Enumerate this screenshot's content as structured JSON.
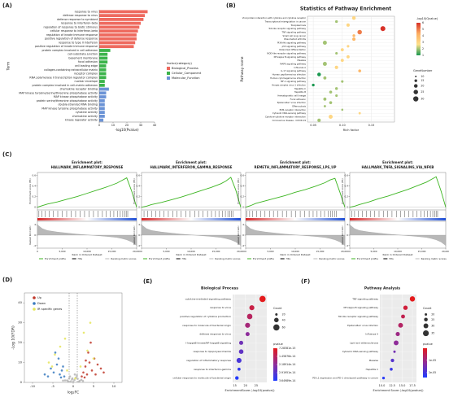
{
  "panel_labels": [
    "(A)",
    "(B)",
    "(C)",
    "(D)",
    "(E)",
    "(F)"
  ],
  "chart_data": [
    {
      "type": "hbar",
      "x_label": "-log10(Pvalue)",
      "y_label": "Term",
      "legend_title": "factor(category)",
      "xlim": [
        0,
        40
      ],
      "xticks": [
        0,
        10,
        20,
        30,
        40
      ],
      "series": [
        {
          "name": "Biological_Process",
          "color": "#ee6a5f",
          "categories": [
            "response to virus",
            "defense response to virus",
            "defense response to symbiont",
            "response to interferon-beta",
            "regulation of response to biotic stimulus",
            "cellular response to interferon-beta",
            "regulation of innate immune response",
            "positive regulation of defense response",
            "response to type II interferon",
            "positive regulation of innate immune response"
          ],
          "values": [
            35,
            33,
            32,
            30,
            29,
            28,
            27,
            27,
            26,
            25
          ]
        },
        {
          "name": "Cellular_Component",
          "color": "#3cb44b",
          "categories": [
            "protein complex involved in cell adhesion",
            "cell-substrate junction",
            "basement membrane",
            "focal adhesion",
            "cell leading edge",
            "collagen-containing extracellular matrix",
            "receptor complex",
            "RNA polymerase II transcription regulator complex",
            "nuclear envelope",
            "protein complex involved in cell-matrix adhesion"
          ],
          "values": [
            8,
            6,
            6,
            6,
            5,
            5,
            5,
            5,
            4,
            4
          ]
        },
        {
          "name": "Molecular_Function",
          "color": "#6b93d6",
          "categories": [
            "chemokine receptor binding",
            "MAP kinase tyrosine/serine/threonine phosphatase activity",
            "MAP kinase phosphatase activity",
            "protein serine/threonine phosphatase activity",
            "double-stranded RNA binding",
            "MAP kinase tyrosine phosphatase activity",
            "cytokine activity",
            "chemokine activity",
            "kinase regulator activity"
          ],
          "values": [
            7,
            5,
            5,
            4,
            4,
            4,
            4,
            4,
            3
          ]
        }
      ]
    },
    {
      "type": "dot",
      "title": "Statistics of Pathway Enrichment",
      "y_label": "Pathway name",
      "x_label": "Rich factor",
      "categories": [
        "Viral protein interaction with cytokine and cytokine receptor",
        "Transcriptional misregulation in cancer",
        "Toxoplasmosis",
        "Toll-like receptor signaling pathway",
        "TNF signaling pathway",
        "Small cell lung cancer",
        "Rheumatoid arthritis",
        "PI3K-Akt signaling pathway",
        "p53 signaling pathway",
        "Osteoclast differentiation",
        "NOD-like receptor signaling pathway",
        "NF-kappa B signaling pathway",
        "Measles",
        "MAPK signaling pathway",
        "Influenza A",
        "IL-17 signaling pathway",
        "Human papillomavirus infection",
        "Human cytomegalovirus infection",
        "HIF-1 signaling pathway",
        "Herpes simplex virus 1 infection",
        "Hepatitis C",
        "Hepatitis B",
        "Hematopoietic cell lineage",
        "Focal adhesion",
        "Epstein-Barr virus infection",
        "Efferocytosis",
        "ECM-receptor interaction",
        "Cytosolic DNA-sensing pathway",
        "Cytokine-cytokine receptor interaction",
        "Coronavirus disease - COVID-19"
      ],
      "values": [
        0.12,
        0.09,
        0.11,
        0.17,
        0.13,
        0.12,
        0.12,
        0.07,
        0.11,
        0.1,
        0.09,
        0.11,
        0.1,
        0.07,
        0.09,
        0.13,
        0.06,
        0.07,
        0.1,
        0.05,
        0.09,
        0.08,
        0.09,
        0.07,
        0.08,
        0.07,
        0.1,
        0.13,
        0.08,
        0.06
      ],
      "color_values": [
        3,
        2,
        3,
        6,
        5,
        4,
        4,
        2,
        3,
        3,
        2,
        3,
        3,
        2,
        3,
        4,
        1,
        2,
        2,
        1,
        2,
        2,
        2,
        2,
        2,
        2,
        2,
        3,
        3,
        2
      ],
      "sizes": [
        20,
        15,
        18,
        28,
        25,
        15,
        18,
        22,
        14,
        17,
        14,
        17,
        17,
        22,
        18,
        16,
        20,
        17,
        14,
        15,
        15,
        16,
        14,
        17,
        16,
        13,
        12,
        13,
        22,
        18
      ],
      "xlim": [
        0.04,
        0.19
      ],
      "xticks": [
        0.05,
        {
          "value": 0.1,
          "label": "0.10"
        },
        0.15
      ],
      "color_label": "-log10(Qvalue)",
      "colors": [
        "#1a9850",
        "#fee08b",
        "#fdae61",
        "#d73027"
      ],
      "clim": [
        1,
        6
      ],
      "cticks": [
        1,
        2,
        3,
        4,
        5,
        6
      ],
      "size_label": "GeneNumber",
      "size_ticks": [
        10,
        15,
        20,
        25,
        30
      ]
    },
    {
      "type": "gsea",
      "title": [
        "Enrichment plot:",
        "HALLMARK_INFLAMMATORY_RESPONSE"
      ],
      "x": [
        0,
        1000,
        2000,
        4000,
        6000,
        8000,
        10000,
        12000,
        14000,
        16000,
        17000,
        18000,
        19000,
        20000
      ],
      "values": [
        0,
        0.03,
        0.06,
        0.1,
        0.15,
        0.2,
        0.26,
        0.32,
        0.38,
        0.45,
        0.5,
        0.55,
        0.3,
        0
      ],
      "metric": [
        4,
        2.5,
        1.8,
        1.2,
        0.8,
        0.4,
        0.1,
        -0.2,
        -0.5,
        -0.9,
        -1.3,
        -1.8,
        -2.6,
        -4
      ],
      "hits": [
        300,
        900,
        1600,
        2400,
        3200,
        4100,
        5000,
        5900,
        6800,
        7700,
        8600,
        9500,
        10400,
        11300,
        12200,
        13100,
        13900,
        14700,
        15400,
        16100,
        16700,
        17200,
        17600,
        17900,
        18200
      ],
      "xlim": [
        0,
        20000
      ],
      "xticks": [
        0,
        {
          "value": 5000,
          "label": "5,000"
        },
        {
          "value": 10000,
          "label": "10,000"
        },
        {
          "value": 15000,
          "label": "15,000"
        },
        {
          "value": 20000,
          "label": "20,000"
        }
      ],
      "ylim": [
        -0.05,
        0.65
      ],
      "yticks": [
        0,
        0.2,
        0.4,
        0.6
      ],
      "y2lim": [
        -5,
        5
      ],
      "y2ticks": [
        -4,
        0,
        4
      ],
      "y_label": "Enrichment score (ES)",
      "y2_label": "Ranked list metric",
      "x_label": "Rank in Ordered Dataset",
      "legend": [
        "Enrichment profile",
        "Hits",
        "Ranking metric scores"
      ]
    },
    {
      "type": "gsea",
      "title": [
        "Enrichment plot:",
        "HALLMARK_INTERFERON_GAMMA_RESPONSE"
      ],
      "x": [
        0,
        1000,
        2000,
        4000,
        6000,
        8000,
        10000,
        12000,
        14000,
        16000,
        17000,
        18000,
        19000,
        20000
      ],
      "values": [
        0,
        0.02,
        0.05,
        0.09,
        0.14,
        0.19,
        0.25,
        0.31,
        0.37,
        0.44,
        0.49,
        0.56,
        0.32,
        0
      ],
      "metric": [
        4,
        2.5,
        1.8,
        1.2,
        0.8,
        0.4,
        0.1,
        -0.2,
        -0.5,
        -0.9,
        -1.3,
        -1.8,
        -2.6,
        -4
      ],
      "hits": [
        500,
        1200,
        2000,
        2900,
        3700,
        4500,
        5400,
        6300,
        7100,
        8000,
        8900,
        9800,
        10700,
        11500,
        12400,
        13300,
        14100,
        14900,
        15600,
        16300,
        16900,
        17400,
        17800,
        18100,
        18400
      ],
      "xlim": [
        0,
        20000
      ],
      "xticks": [
        0,
        {
          "value": 5000,
          "label": "5,000"
        },
        {
          "value": 10000,
          "label": "10,000"
        },
        {
          "value": 15000,
          "label": "15,000"
        },
        {
          "value": 20000,
          "label": "20,000"
        }
      ],
      "ylim": [
        -0.05,
        0.65
      ],
      "yticks": [
        0,
        0.2,
        0.4,
        0.6
      ],
      "y2lim": [
        -5,
        5
      ],
      "y2ticks": [
        -4,
        0,
        4
      ],
      "y_label": "Enrichment score (ES)",
      "y2_label": "Ranked list metric",
      "x_label": "Rank in Ordered Dataset",
      "legend": [
        "Enrichment profile",
        "Hits",
        "Ranking metric scores"
      ]
    },
    {
      "type": "gsea",
      "title": [
        "Enrichment plot:",
        "REMETH_INFLAMMATORY_RESPONSE_LPS_UP"
      ],
      "x": [
        0,
        1000,
        2000,
        4000,
        6000,
        8000,
        10000,
        12000,
        14000,
        16000,
        17000,
        18000,
        19000,
        20000
      ],
      "values": [
        0,
        0.03,
        0.07,
        0.12,
        0.17,
        0.22,
        0.28,
        0.33,
        0.39,
        0.46,
        0.51,
        0.54,
        0.28,
        0
      ],
      "metric": [
        4,
        2.5,
        1.8,
        1.2,
        0.8,
        0.4,
        0.1,
        -0.2,
        -0.5,
        -0.9,
        -1.3,
        -1.8,
        -2.6,
        -4
      ],
      "hits": [
        200,
        800,
        1400,
        2200,
        3000,
        3900,
        4800,
        5600,
        6500,
        7400,
        8300,
        9200,
        10100,
        11000,
        11900,
        12800,
        13600,
        14400,
        15200,
        15900,
        16600,
        17100,
        17500,
        17900,
        18300
      ],
      "xlim": [
        0,
        20000
      ],
      "xticks": [
        0,
        {
          "value": 5000,
          "label": "5,000"
        },
        {
          "value": 10000,
          "label": "10,000"
        },
        {
          "value": 15000,
          "label": "15,000"
        },
        {
          "value": 20000,
          "label": "20,000"
        }
      ],
      "ylim": [
        -0.05,
        0.65
      ],
      "yticks": [
        0,
        0.2,
        0.4,
        0.6
      ],
      "y2lim": [
        -5,
        5
      ],
      "y2ticks": [
        -4,
        0,
        4
      ],
      "y_label": "Enrichment score (ES)",
      "y2_label": "Ranked list metric",
      "x_label": "Rank in Ordered Dataset",
      "legend": [
        "Enrichment profile",
        "Hits",
        "Ranking metric scores"
      ]
    },
    {
      "type": "gsea",
      "title": [
        "Enrichment plot:",
        "HALLMARK_TNFA_SIGNALING_VIA_NFKB"
      ],
      "x": [
        0,
        1000,
        2000,
        4000,
        6000,
        8000,
        10000,
        12000,
        14000,
        16000,
        17000,
        18000,
        19000,
        20000
      ],
      "values": [
        0,
        0.02,
        0.05,
        0.1,
        0.16,
        0.21,
        0.27,
        0.33,
        0.4,
        0.47,
        0.52,
        0.57,
        0.31,
        0
      ],
      "metric": [
        4,
        2.5,
        1.8,
        1.2,
        0.8,
        0.4,
        0.1,
        -0.2,
        -0.5,
        -0.9,
        -1.3,
        -1.8,
        -2.6,
        -4
      ],
      "hits": [
        400,
        1000,
        1800,
        2600,
        3500,
        4300,
        5200,
        6100,
        7000,
        7900,
        8800,
        9700,
        10600,
        11400,
        12300,
        13200,
        14000,
        14800,
        15500,
        16200,
        16800,
        17300,
        17700,
        18000,
        18300
      ],
      "xlim": [
        0,
        20000
      ],
      "xticks": [
        0,
        {
          "value": 5000,
          "label": "5,000"
        },
        {
          "value": 10000,
          "label": "10,000"
        },
        {
          "value": 15000,
          "label": "15,000"
        },
        {
          "value": 20000,
          "label": "20,000"
        }
      ],
      "ylim": [
        -0.05,
        0.65
      ],
      "yticks": [
        0,
        0.2,
        0.4,
        0.6
      ],
      "y2lim": [
        -5,
        5
      ],
      "y2ticks": [
        -4,
        0,
        4
      ],
      "y_label": "Enrichment score (ES)",
      "y2_label": "Ranked list metric",
      "x_label": "Rank in Ordered Dataset",
      "legend": [
        "Enrichment profile",
        "Hits",
        "Ranking metric scores"
      ]
    },
    {
      "type": "scatter",
      "x_label": "log₂FC",
      "y_label": "-Log 10(FDR)",
      "xlim": [
        -12,
        12
      ],
      "xticks": [
        -10,
        -5,
        0,
        5,
        10
      ],
      "ylim": [
        0,
        45
      ],
      "yticks": [
        0,
        10,
        20,
        30,
        40
      ],
      "vlines": [
        -1,
        1
      ],
      "background": {
        "color": "#b5b5b5",
        "x": [
          -1.5,
          -1,
          -0.6,
          -0.3,
          0,
          0.3,
          0.7,
          1.1,
          1.6,
          -2,
          2,
          -0.8,
          0.9,
          -0.2,
          0.4,
          -1.3,
          1.4,
          -2.5,
          2.4
        ],
        "values": [
          1,
          2,
          0.5,
          1.5,
          0.3,
          1.2,
          2.5,
          1.8,
          0.8,
          1,
          1.3,
          3,
          3.5,
          2,
          4,
          0.6,
          0.4,
          0.9,
          0.7
        ]
      },
      "series": [
        {
          "name": "Up",
          "color": "#c0392b",
          "x": [
            2.1,
            2.5,
            3,
            3.4,
            4,
            4.6,
            5.2,
            6,
            6.8,
            3.7,
            2.8,
            5.5,
            7.5,
            4.3,
            3.1
          ],
          "values": [
            3,
            5,
            8,
            4,
            10,
            6,
            12,
            9,
            7,
            15,
            2.5,
            4,
            5,
            20,
            11
          ]
        },
        {
          "name": "Down",
          "color": "#3a7bbf",
          "x": [
            -2.2,
            -2.8,
            -3.3,
            -4,
            -4.8,
            -5.5,
            -6.2,
            -3.6,
            -2.5,
            -7,
            -4.4,
            -3
          ],
          "values": [
            3,
            6,
            4,
            9,
            5,
            7,
            3,
            12,
            8,
            4,
            15,
            2.5
          ]
        },
        {
          "name": "IR specific genes",
          "color": "#e5e55a",
          "x": [
            -6,
            -4.5,
            -3.2,
            -1.5,
            0.5,
            1.8,
            3.5,
            5,
            -2,
            2.6,
            -5.2,
            4.2
          ],
          "values": [
            10,
            14,
            18,
            6,
            2,
            8,
            16,
            12,
            22,
            25,
            8,
            30
          ]
        }
      ]
    },
    {
      "type": "dot",
      "title": "Biological Process",
      "x_label": "EnrichmentScore (-log10(pvalue))",
      "categories": [
        "cytokine-mediated signaling pathway",
        "response to virus",
        "positive regulation of cytokine production",
        "response to molecule of bacterial origin",
        "defense response to virus",
        "I-kappaB kinase/NF-kappaB signaling",
        "response to lipopolysaccharide",
        "regulation of inflammatory response",
        "response to interferon-gamma",
        "cellular response to molecule of bacterial origin"
      ],
      "values": [
        28,
        23,
        22,
        21,
        21,
        18,
        18,
        17,
        17,
        16
      ],
      "sizes": [
        60,
        45,
        50,
        45,
        35,
        35,
        40,
        45,
        25,
        30
      ],
      "color_values": [
        7.3e-15,
        1.2e-14,
        1.5e-14,
        1.8e-14,
        2.2e-14,
        2.6e-14,
        2.8e-14,
        3.1e-14,
        3.4e-14,
        3.6e-14
      ],
      "xlim": [
        14,
        30
      ],
      "xticks": [
        15,
        20,
        25
      ],
      "size_label": "Count",
      "size_ticks": [
        20,
        40,
        60
      ],
      "color_label": "pvalue",
      "colors": [
        "#e41a1c",
        "#8e2c9a",
        "#1f3cff"
      ],
      "clim": [
        7.28381e-15,
        3.64989e-14
      ],
      "cticks": [
        7.28381e-15,
        1.45876e-14,
        2.18914e-14,
        2.91951e-14,
        3.64989e-14
      ]
    },
    {
      "type": "dot",
      "title": "Pathway Analysis",
      "x_label": "Enrichment Score (-log10(pvalue))",
      "categories": [
        "TNF signaling pathway",
        "NF-kappa B signaling pathway",
        "Toll-like receptor signaling pathway",
        "Epstein-Barr virus infection",
        "Influenza A",
        "Lipid and atherosclerosis",
        "Cytosolic DNA-sensing pathway",
        "Measles",
        "Hepatitis C",
        "PD-L1 expression and PD-1 checkpoint pathway in cancer"
      ],
      "values": [
        17.5,
        15.8,
        15.2,
        14.6,
        13.9,
        13.5,
        13.1,
        12.6,
        12.3,
        10.4
      ],
      "sizes": [
        32,
        28,
        26,
        30,
        27,
        30,
        20,
        24,
        22,
        21
      ],
      "color_values": [
        2e-07,
        3e-06,
        5e-06,
        7e-06,
        1e-05,
        1.2e-05,
        1.5e-05,
        1.8e-05,
        2.1e-05,
        2.3e-05
      ],
      "xlim": [
        9.5,
        18.5
      ],
      "xticks": [
        {
          "value": 10,
          "label": "10.0"
        },
        12.5,
        {
          "value": 15,
          "label": "15.0"
        },
        17.5
      ],
      "size_label": "Count",
      "size_ticks": [
        20,
        25,
        30,
        35
      ],
      "color_label": "pvalue",
      "colors": [
        "#e41a1c",
        "#8e2c9a",
        "#1f3cff"
      ],
      "clim": [
        2e-07,
        2.4e-05
      ],
      "cticks": [
        {
          "value": 1e-05,
          "label": "1e-05"
        },
        {
          "value": 2e-05,
          "label": "2e-05"
        }
      ]
    }
  ]
}
